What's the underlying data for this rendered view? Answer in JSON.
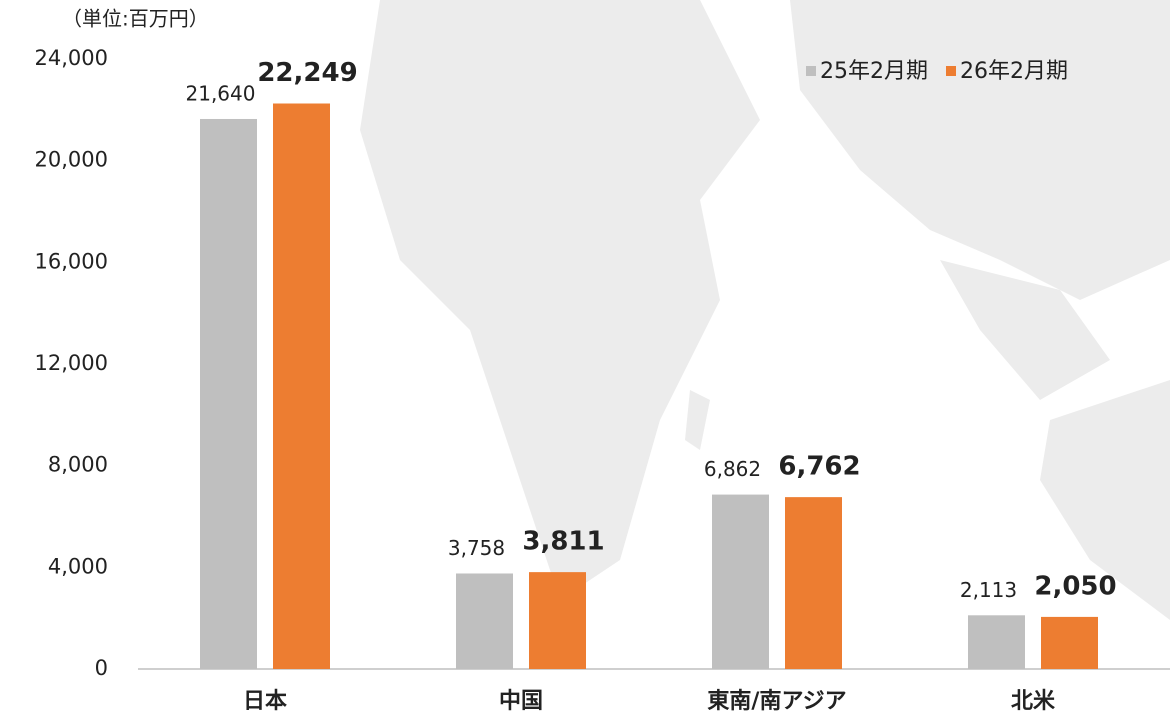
{
  "chart_data": {
    "type": "bar",
    "unit_label": "（単位:百万円）",
    "categories": [
      "日本",
      "中国",
      "東南/南アジア",
      "北米"
    ],
    "series": [
      {
        "name": "25年2月期",
        "color": "#bfbfbf",
        "values": [
          21640,
          3758,
          6862,
          2113
        ],
        "value_labels": [
          "21,640",
          "3,758",
          "6,862",
          "2,113"
        ]
      },
      {
        "name": "26年2月期",
        "color": "#ed7d31",
        "values": [
          22249,
          3811,
          6762,
          2050
        ],
        "value_labels": [
          "22,249",
          "3,811",
          "6,762",
          "2,050"
        ]
      }
    ],
    "ylim": [
      0,
      24000
    ],
    "yticks": [
      0,
      {
        "value": 4000,
        "label": "4,000"
      },
      {
        "value": 8000,
        "label": "8,000"
      },
      {
        "value": 12000,
        "label": "12,000"
      },
      {
        "value": 16000,
        "label": "16,000"
      },
      {
        "value": 20000,
        "label": "20,000"
      },
      {
        "value": 24000,
        "label": "24,000"
      }
    ],
    "legend": "top-right"
  }
}
